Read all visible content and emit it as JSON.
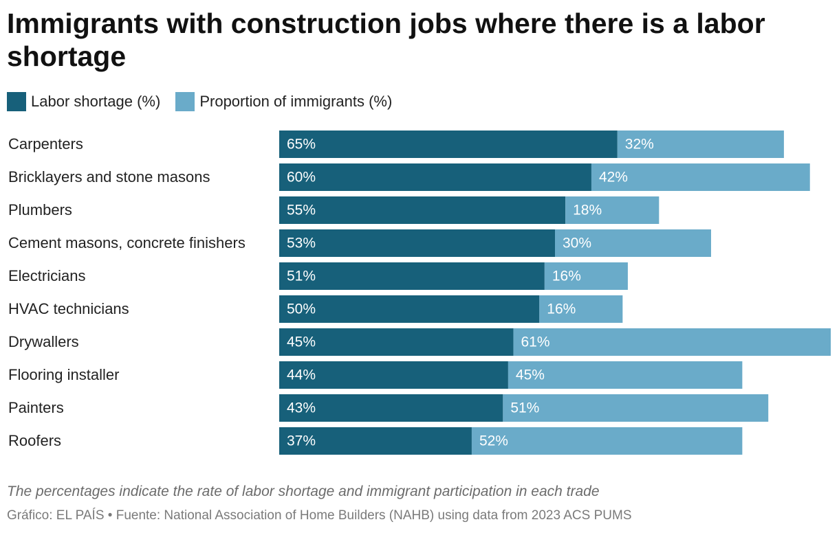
{
  "chart_data": {
    "type": "bar",
    "orientation": "horizontal",
    "stacked": true,
    "title": "Immigrants with construction jobs where there is a labor shortage",
    "categories": [
      "Carpenters",
      "Bricklayers and stone masons",
      "Plumbers",
      "Cement masons, concrete finishers",
      "Electricians",
      "HVAC technicians",
      "Drywallers",
      "Flooring installer",
      "Painters",
      "Roofers"
    ],
    "series": [
      {
        "name": "Labor shortage (%)",
        "color": "#17607a",
        "values": [
          65,
          60,
          55,
          53,
          51,
          50,
          45,
          44,
          43,
          37
        ]
      },
      {
        "name": "Proportion of immigrants (%)",
        "color": "#6aabc9",
        "values": [
          32,
          42,
          18,
          30,
          16,
          16,
          61,
          45,
          51,
          52
        ]
      }
    ],
    "xlim": [
      0,
      106
    ],
    "legend_position": "top-left",
    "value_suffix": "%"
  },
  "footer": {
    "note": "The percentages indicate the rate of labor shortage and immigrant participation in each trade",
    "source": "Gráfico: EL PAÍS • Fuente: National Association of Home Builders (NAHB) using data from 2023 ACS PUMS"
  }
}
